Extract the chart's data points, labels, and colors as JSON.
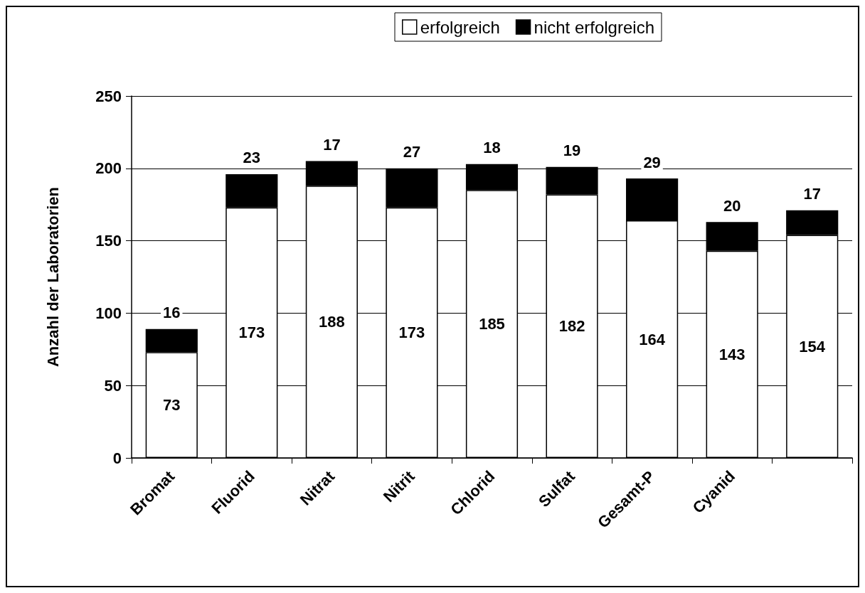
{
  "chart_data": {
    "type": "bar",
    "ylabel": "Anzahl der Laboratorien",
    "categories": [
      "Bromat",
      "Fluorid",
      "Nitrat",
      "Nitrit",
      "Chlorid",
      "Sulfat",
      "Gesamt-P",
      "Cyanid",
      null
    ],
    "series": [
      {
        "name": "erfolgreich",
        "color": "#ffffff",
        "values": [
          73,
          173,
          188,
          173,
          185,
          182,
          164,
          143,
          154
        ]
      },
      {
        "name": "nicht erfolgreich",
        "color": "#000000",
        "values": [
          16,
          23,
          17,
          27,
          18,
          19,
          29,
          20,
          17
        ]
      }
    ],
    "stacked": true,
    "data_labels": true,
    "ylim": [
      0,
      250
    ],
    "yticks": [
      0,
      50,
      100,
      150,
      200,
      250
    ],
    "grid": "y",
    "legend": "top"
  }
}
